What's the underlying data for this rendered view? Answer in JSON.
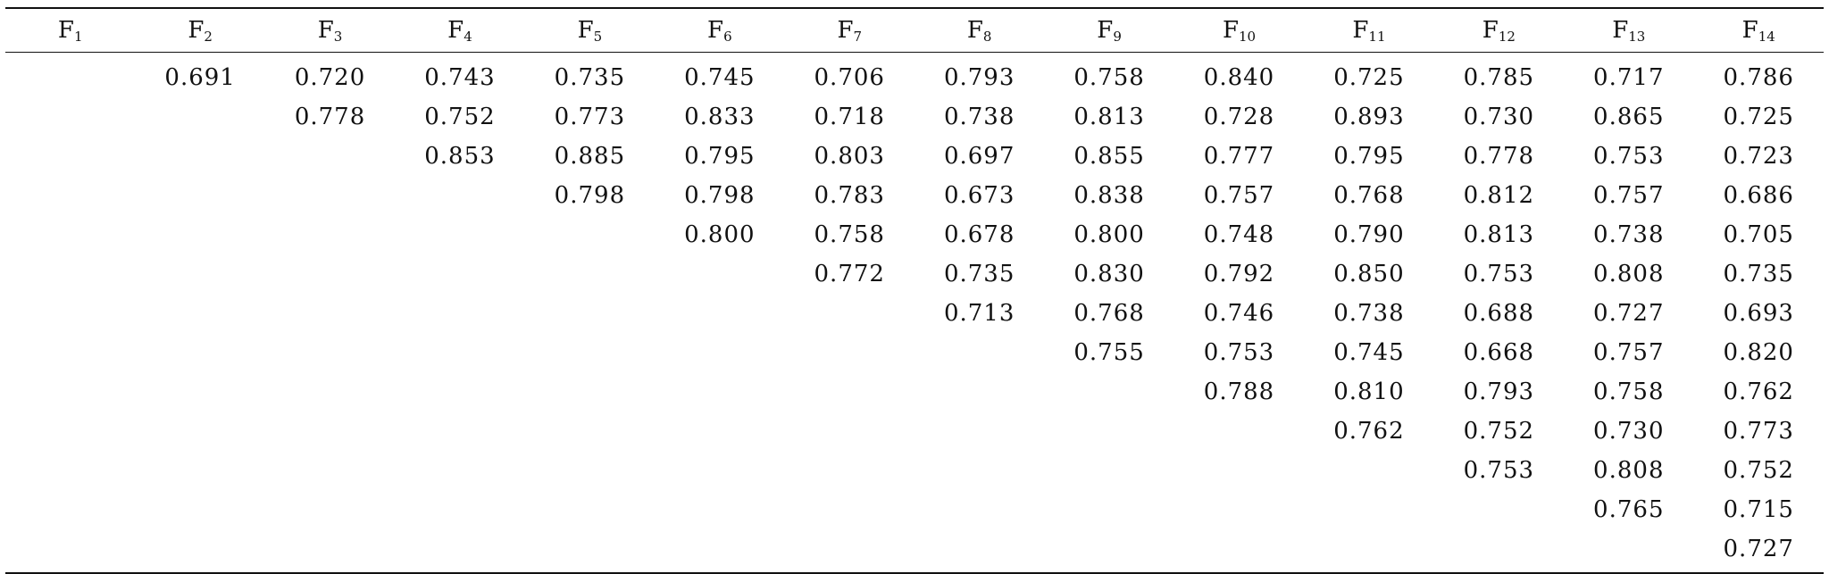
{
  "table": {
    "headers": [
      {
        "main": "F",
        "sub": "1"
      },
      {
        "main": "F",
        "sub": "2"
      },
      {
        "main": "F",
        "sub": "3"
      },
      {
        "main": "F",
        "sub": "4"
      },
      {
        "main": "F",
        "sub": "5"
      },
      {
        "main": "F",
        "sub": "6"
      },
      {
        "main": "F",
        "sub": "7"
      },
      {
        "main": "F",
        "sub": "8"
      },
      {
        "main": "F",
        "sub": "9"
      },
      {
        "main": "F",
        "sub": "10"
      },
      {
        "main": "F",
        "sub": "11"
      },
      {
        "main": "F",
        "sub": "12"
      },
      {
        "main": "F",
        "sub": "13"
      },
      {
        "main": "F",
        "sub": "14"
      }
    ],
    "rows": [
      [
        "",
        "0.691",
        "0.720",
        "0.743",
        "0.735",
        "0.745",
        "0.706",
        "0.793",
        "0.758",
        "0.840",
        "0.725",
        "0.785",
        "0.717",
        "0.786"
      ],
      [
        "",
        "",
        "0.778",
        "0.752",
        "0.773",
        "0.833",
        "0.718",
        "0.738",
        "0.813",
        "0.728",
        "0.893",
        "0.730",
        "0.865",
        "0.725"
      ],
      [
        "",
        "",
        "",
        "0.853",
        "0.885",
        "0.795",
        "0.803",
        "0.697",
        "0.855",
        "0.777",
        "0.795",
        "0.778",
        "0.753",
        "0.723"
      ],
      [
        "",
        "",
        "",
        "",
        "0.798",
        "0.798",
        "0.783",
        "0.673",
        "0.838",
        "0.757",
        "0.768",
        "0.812",
        "0.757",
        "0.686"
      ],
      [
        "",
        "",
        "",
        "",
        "",
        "0.800",
        "0.758",
        "0.678",
        "0.800",
        "0.748",
        "0.790",
        "0.813",
        "0.738",
        "0.705"
      ],
      [
        "",
        "",
        "",
        "",
        "",
        "",
        "0.772",
        "0.735",
        "0.830",
        "0.792",
        "0.850",
        "0.753",
        "0.808",
        "0.735"
      ],
      [
        "",
        "",
        "",
        "",
        "",
        "",
        "",
        "0.713",
        "0.768",
        "0.746",
        "0.738",
        "0.688",
        "0.727",
        "0.693"
      ],
      [
        "",
        "",
        "",
        "",
        "",
        "",
        "",
        "",
        "0.755",
        "0.753",
        "0.745",
        "0.668",
        "0.757",
        "0.820"
      ],
      [
        "",
        "",
        "",
        "",
        "",
        "",
        "",
        "",
        "",
        "0.788",
        "0.810",
        "0.793",
        "0.758",
        "0.762"
      ],
      [
        "",
        "",
        "",
        "",
        "",
        "",
        "",
        "",
        "",
        "",
        "0.762",
        "0.752",
        "0.730",
        "0.773"
      ],
      [
        "",
        "",
        "",
        "",
        "",
        "",
        "",
        "",
        "",
        "",
        "",
        "0.753",
        "0.808",
        "0.752"
      ],
      [
        "",
        "",
        "",
        "",
        "",
        "",
        "",
        "",
        "",
        "",
        "",
        "",
        "0.765",
        "0.715"
      ],
      [
        "",
        "",
        "",
        "",
        "",
        "",
        "",
        "",
        "",
        "",
        "",
        "",
        "",
        "0.727"
      ]
    ]
  }
}
